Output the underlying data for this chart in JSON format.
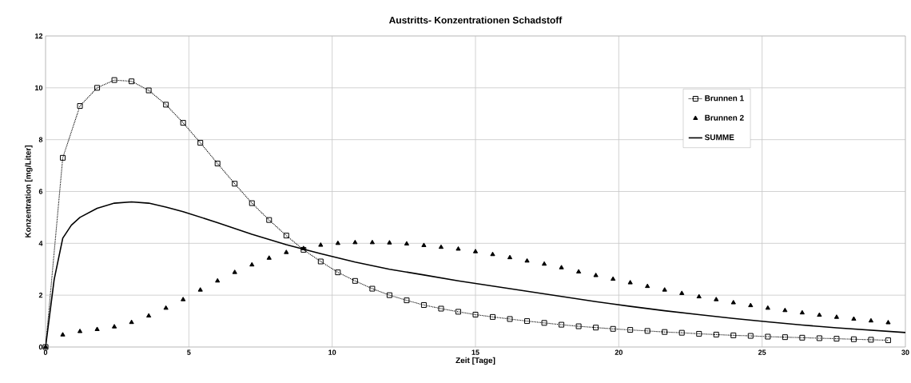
{
  "chart_data": {
    "type": "line",
    "title": "Austritts- Konzentrationen Schadstoff",
    "xlabel": "Zeit   [Tage]",
    "ylabel": "Konzentration   [mg/Liter]",
    "xlim": [
      0,
      30
    ],
    "ylim": [
      0,
      12
    ],
    "xticks": [
      0,
      5,
      10,
      15,
      20,
      25,
      30
    ],
    "yticks": [
      0,
      2,
      4,
      6,
      8,
      10,
      12
    ],
    "grid": true,
    "legend": "top right",
    "series": [
      {
        "name": "Brunnen 1",
        "color": "#000000",
        "marker": "square",
        "line_style": "dotted",
        "x": [
          0,
          0.6,
          1.2,
          1.8,
          2.4,
          3.0,
          3.6,
          4.2,
          4.8,
          5.4,
          6.0,
          6.6,
          7.2,
          7.8,
          8.4,
          9.0,
          9.6,
          10.2,
          10.8,
          11.4,
          12.0,
          12.6,
          13.2,
          13.8,
          14.4,
          15.0,
          15.6,
          16.2,
          16.8,
          17.4,
          18.0,
          18.6,
          19.2,
          19.8,
          20.4,
          21.0,
          21.6,
          22.2,
          22.8,
          23.4,
          24.0,
          24.6,
          25.2,
          25.8,
          26.4,
          27.0,
          27.6,
          28.2,
          28.8,
          29.4
        ],
        "values": [
          0,
          7.3,
          9.3,
          10.0,
          10.3,
          10.25,
          9.9,
          9.35,
          8.65,
          7.88,
          7.08,
          6.3,
          5.55,
          4.9,
          4.3,
          3.75,
          3.3,
          2.88,
          2.55,
          2.25,
          2.0,
          1.8,
          1.62,
          1.48,
          1.36,
          1.25,
          1.16,
          1.08,
          1.0,
          0.93,
          0.86,
          0.8,
          0.75,
          0.7,
          0.66,
          0.62,
          0.58,
          0.55,
          0.51,
          0.48,
          0.45,
          0.43,
          0.4,
          0.38,
          0.36,
          0.34,
          0.32,
          0.3,
          0.28,
          0.26
        ]
      },
      {
        "name": "Brunnen 2",
        "type": "scatter",
        "color": "#000000",
        "marker": "triangle",
        "x": [
          0,
          0.6,
          1.2,
          1.8,
          2.4,
          3.0,
          3.6,
          4.2,
          4.8,
          5.4,
          6.0,
          6.6,
          7.2,
          7.8,
          8.4,
          9.0,
          9.6,
          10.2,
          10.8,
          11.4,
          12.0,
          12.6,
          13.2,
          13.8,
          14.4,
          15.0,
          15.6,
          16.2,
          16.8,
          17.4,
          18.0,
          18.6,
          19.2,
          19.8,
          20.4,
          21.0,
          21.6,
          22.2,
          22.8,
          23.4,
          24.0,
          24.6,
          25.2,
          25.8,
          26.4,
          27.0,
          27.6,
          28.2,
          28.8,
          29.4
        ],
        "values": [
          0,
          0.47,
          0.6,
          0.68,
          0.78,
          0.95,
          1.2,
          1.5,
          1.83,
          2.2,
          2.55,
          2.88,
          3.17,
          3.43,
          3.65,
          3.8,
          3.93,
          4.0,
          4.03,
          4.03,
          4.02,
          3.98,
          3.92,
          3.85,
          3.78,
          3.68,
          3.57,
          3.45,
          3.32,
          3.2,
          3.06,
          2.9,
          2.76,
          2.62,
          2.48,
          2.34,
          2.2,
          2.07,
          1.94,
          1.83,
          1.71,
          1.6,
          1.5,
          1.41,
          1.32,
          1.23,
          1.15,
          1.08,
          1.01,
          0.94
        ]
      },
      {
        "name": "SUMME",
        "color": "#000000",
        "marker": "none",
        "line_style": "solid",
        "x": [
          0,
          0.3,
          0.6,
          0.9,
          1.2,
          1.8,
          2.4,
          3.0,
          3.6,
          4.2,
          4.8,
          6.0,
          7.2,
          8.4,
          9.6,
          10.8,
          12.0,
          13.2,
          14.4,
          15.6,
          16.8,
          18.0,
          19.2,
          20.4,
          21.6,
          22.8,
          24.0,
          25.2,
          26.4,
          27.6,
          28.8,
          30
        ],
        "values": [
          0,
          2.6,
          4.2,
          4.7,
          5.0,
          5.35,
          5.55,
          5.6,
          5.55,
          5.4,
          5.22,
          4.8,
          4.35,
          3.95,
          3.6,
          3.28,
          3.0,
          2.78,
          2.55,
          2.35,
          2.15,
          1.95,
          1.75,
          1.57,
          1.4,
          1.25,
          1.1,
          0.97,
          0.85,
          0.74,
          0.65,
          0.56
        ]
      }
    ]
  }
}
